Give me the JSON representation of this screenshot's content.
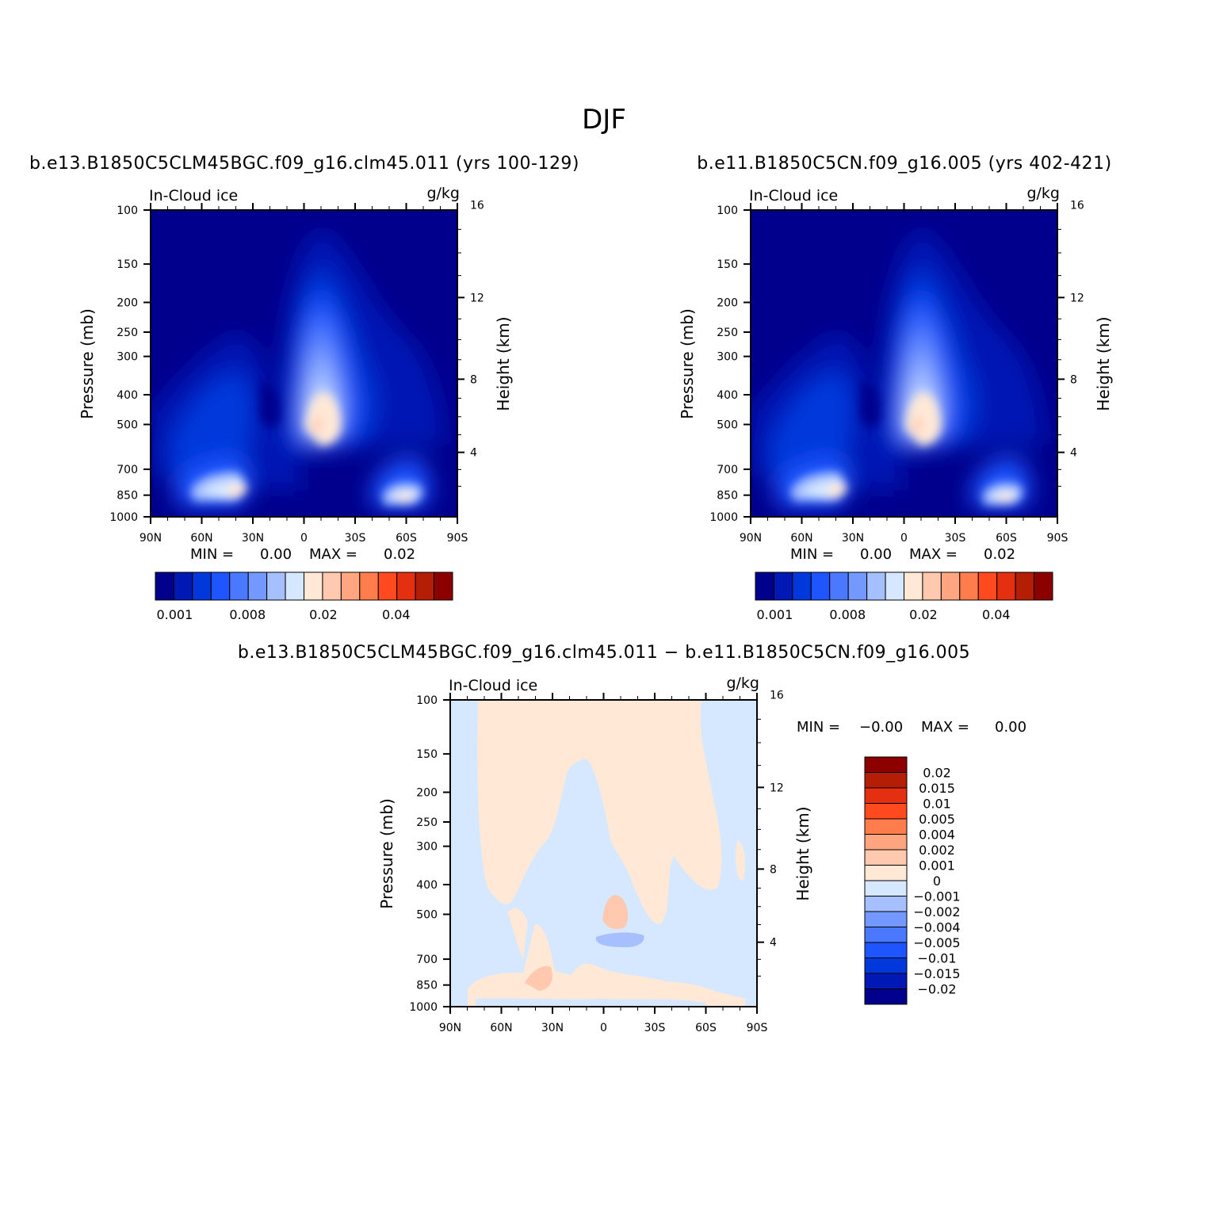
{
  "figure_title": "DJF",
  "colors": {
    "seq": [
      "#00008c",
      "#0019b4",
      "#0038dc",
      "#1e55ff",
      "#4a78ff",
      "#7398ff",
      "#a6c0ff",
      "#d6e8ff",
      "#ffe8d6",
      "#ffc9b0",
      "#ffa57f",
      "#ff7d4d",
      "#ff4a20",
      "#e43010",
      "#b41e05",
      "#8c0000"
    ],
    "diff": [
      "#00008c",
      "#0019b4",
      "#0038dc",
      "#1e55ff",
      "#4a78ff",
      "#7398ff",
      "#a6c0ff",
      "#d6e8ff",
      "#ffe8d6",
      "#ffc9b0",
      "#ffa57f",
      "#ff7d4d",
      "#ff4a20",
      "#e43010",
      "#b41e05",
      "#8c0000"
    ]
  },
  "chart_data": [
    {
      "type": "heatmap",
      "title": "b.e13.B1850C5CLM45BGC.f09_g16.clm45.011 (yrs 100-129)",
      "left_label": "In-Cloud ice",
      "right_label": "g/kg",
      "ylabel": "Pressure (mb)",
      "ylabel_right": "Height (km)",
      "x_ticks": [
        "90N",
        "60N",
        "30N",
        "0",
        "30S",
        "60S",
        "90S"
      ],
      "y_ticks": [
        "100",
        "150",
        "200",
        "250",
        "300",
        "400",
        "500",
        "700",
        "850",
        "1000"
      ],
      "y_right_ticks": [
        "16",
        "12",
        "8",
        "4"
      ],
      "min_label": "MIN =",
      "min_value": "0.00",
      "max_label": "MAX =",
      "max_value": "0.02",
      "colorbar_labels": [
        "0.001",
        "0.008",
        "0.02",
        "0.04"
      ]
    },
    {
      "type": "heatmap",
      "title": "b.e11.B1850C5CN.f09_g16.005 (yrs 402-421)",
      "left_label": "In-Cloud ice",
      "right_label": "g/kg",
      "ylabel": "Pressure (mb)",
      "ylabel_right": "Height (km)",
      "x_ticks": [
        "90N",
        "60N",
        "30N",
        "0",
        "30S",
        "60S",
        "90S"
      ],
      "y_ticks": [
        "100",
        "150",
        "200",
        "250",
        "300",
        "400",
        "500",
        "700",
        "850",
        "1000"
      ],
      "y_right_ticks": [
        "16",
        "12",
        "8",
        "4"
      ],
      "min_label": "MIN =",
      "min_value": "0.00",
      "max_label": "MAX =",
      "max_value": "0.02",
      "colorbar_labels": [
        "0.001",
        "0.008",
        "0.02",
        "0.04"
      ]
    },
    {
      "type": "heatmap",
      "title": "b.e13.B1850C5CLM45BGC.f09_g16.clm45.011 − b.e11.B1850C5CN.f09_g16.005",
      "left_label": "In-Cloud ice",
      "right_label": "g/kg",
      "ylabel": "Pressure (mb)",
      "ylabel_right": "Height (km)",
      "x_ticks": [
        "90N",
        "60N",
        "30N",
        "0",
        "30S",
        "60S",
        "90S"
      ],
      "y_ticks": [
        "100",
        "150",
        "200",
        "250",
        "300",
        "400",
        "500",
        "700",
        "850",
        "1000"
      ],
      "y_right_ticks": [
        "16",
        "12",
        "8",
        "4"
      ],
      "min_label": "MIN =",
      "min_value": "−0.00",
      "max_label": "MAX =",
      "max_value": "0.00",
      "colorbar_labels": [
        "0.02",
        "0.015",
        "0.01",
        "0.005",
        "0.004",
        "0.002",
        "0.001",
        "0",
        "−0.001",
        "−0.002",
        "−0.004",
        "−0.005",
        "−0.01",
        "−0.015",
        "−0.02"
      ]
    }
  ]
}
